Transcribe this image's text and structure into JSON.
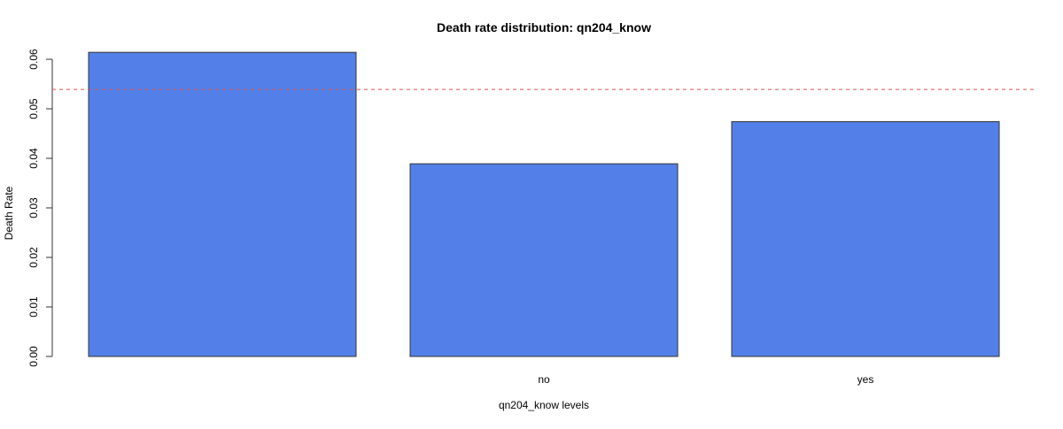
{
  "chart_data": {
    "type": "bar",
    "title": "Death rate distribution: qn204_know",
    "xlabel": "qn204_know levels",
    "ylabel": "Death Rate",
    "categories": [
      "",
      "no",
      "yes"
    ],
    "values": [
      0.0614,
      0.0389,
      0.0474
    ],
    "ylim": [
      0,
      0.06
    ],
    "yticks": [
      "0.00",
      "0.01",
      "0.02",
      "0.03",
      "0.04",
      "0.05",
      "0.06"
    ],
    "reference_line": 0.0539,
    "colors": {
      "bar_fill": "#5380e8",
      "bar_stroke": "#333333",
      "reference_line": "#d9534f",
      "axis": "#333333"
    },
    "grid": false,
    "legend": "none"
  }
}
